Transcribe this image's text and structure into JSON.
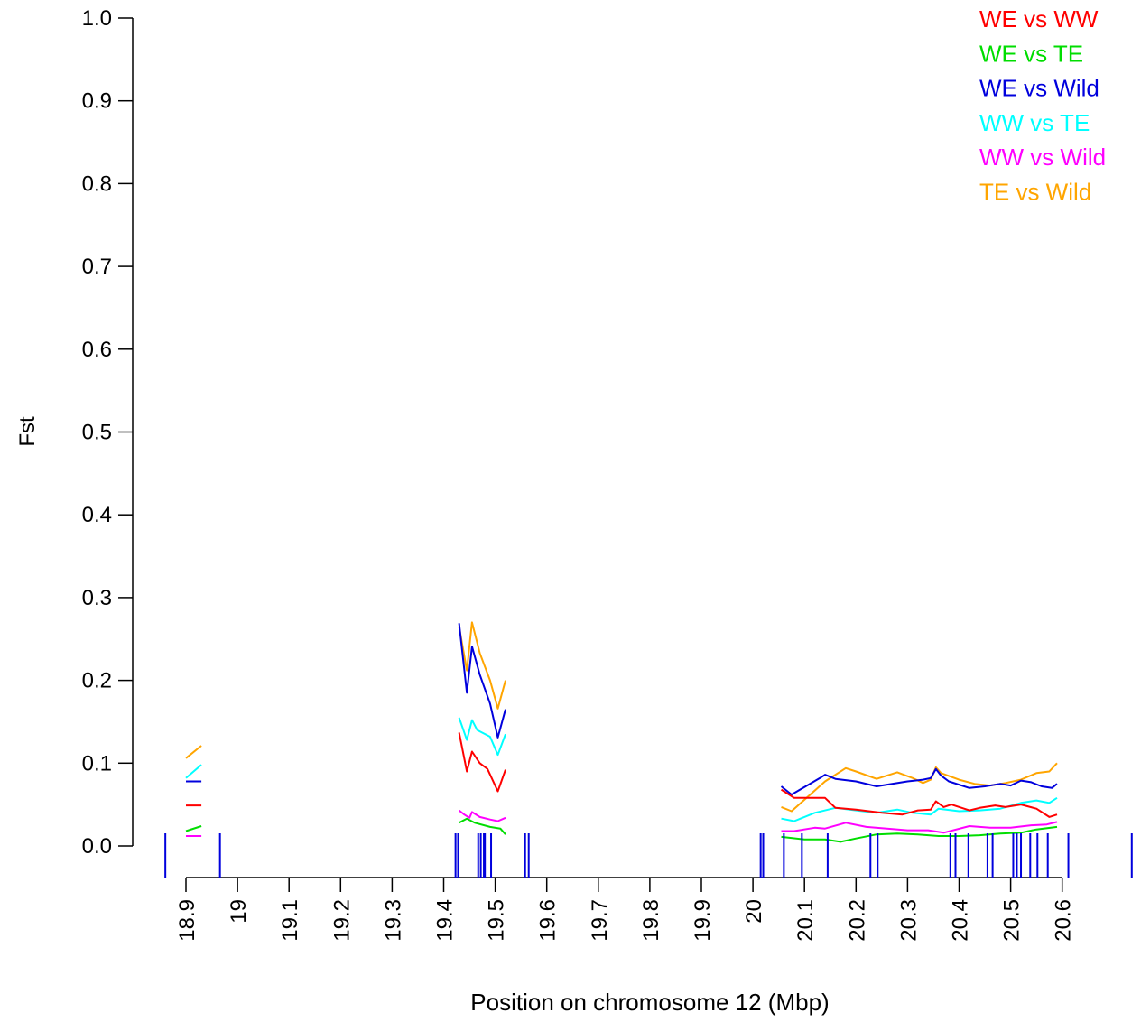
{
  "chart_data": {
    "type": "line",
    "title": "",
    "xlabel": "Position on chromosome 12 (Mbp)",
    "ylabel": "Fst",
    "xlim": [
      18.86,
      20.68
    ],
    "ylim": [
      0,
      1
    ],
    "grid": false,
    "legend_position": "top-right",
    "x_ticks": [
      {
        "value": 18.9,
        "label": "18.9"
      },
      {
        "value": 19.0,
        "label": "19"
      },
      {
        "value": 19.1,
        "label": "19.1"
      },
      {
        "value": 19.2,
        "label": "19.2"
      },
      {
        "value": 19.3,
        "label": "19.3"
      },
      {
        "value": 19.4,
        "label": "19.4"
      },
      {
        "value": 19.5,
        "label": "19.5"
      },
      {
        "value": 19.6,
        "label": "19.6"
      },
      {
        "value": 19.7,
        "label": "19.7"
      },
      {
        "value": 19.8,
        "label": "19.8"
      },
      {
        "value": 19.9,
        "label": "19.9"
      },
      {
        "value": 20.0,
        "label": "20"
      },
      {
        "value": 20.1,
        "label": "20.1"
      },
      {
        "value": 20.2,
        "label": "20.2"
      },
      {
        "value": 20.3,
        "label": "20.3"
      },
      {
        "value": 20.4,
        "label": "20.4"
      },
      {
        "value": 20.5,
        "label": "20.5"
      },
      {
        "value": 20.6,
        "label": "20.6"
      }
    ],
    "y_ticks": [
      {
        "value": 0.0,
        "label": "0.0"
      },
      {
        "value": 0.1,
        "label": "0.1"
      },
      {
        "value": 0.2,
        "label": "0.2"
      },
      {
        "value": 0.3,
        "label": "0.3"
      },
      {
        "value": 0.4,
        "label": "0.4"
      },
      {
        "value": 0.5,
        "label": "0.5"
      },
      {
        "value": 0.6,
        "label": "0.6"
      },
      {
        "value": 0.7,
        "label": "0.7"
      },
      {
        "value": 0.8,
        "label": "0.8"
      },
      {
        "value": 0.9,
        "label": "0.9"
      },
      {
        "value": 1.0,
        "label": "1.0"
      }
    ],
    "series": [
      {
        "name": "WE vs WW",
        "color": "#ff0000",
        "segments": [
          [
            [
              18.9,
              0.049
            ],
            [
              18.93,
              0.049
            ]
          ],
          [
            [
              19.43,
              0.137
            ],
            [
              19.445,
              0.09
            ],
            [
              19.455,
              0.114
            ],
            [
              19.47,
              0.1
            ],
            [
              19.485,
              0.093
            ],
            [
              19.505,
              0.066
            ],
            [
              19.52,
              0.092
            ]
          ],
          [
            [
              20.055,
              0.068
            ],
            [
              20.08,
              0.058
            ],
            [
              20.14,
              0.058
            ],
            [
              20.16,
              0.046
            ],
            [
              20.2,
              0.044
            ],
            [
              20.25,
              0.04
            ],
            [
              20.29,
              0.038
            ],
            [
              20.32,
              0.043
            ],
            [
              20.345,
              0.044
            ],
            [
              20.355,
              0.054
            ],
            [
              20.37,
              0.047
            ],
            [
              20.385,
              0.05
            ],
            [
              20.42,
              0.043
            ],
            [
              20.44,
              0.046
            ],
            [
              20.47,
              0.049
            ],
            [
              20.49,
              0.047
            ],
            [
              20.52,
              0.05
            ],
            [
              20.55,
              0.045
            ],
            [
              20.575,
              0.035
            ],
            [
              20.59,
              0.038
            ]
          ]
        ]
      },
      {
        "name": "WE vs TE",
        "color": "#00dd00",
        "segments": [
          [
            [
              18.9,
              0.018
            ],
            [
              18.93,
              0.024
            ]
          ],
          [
            [
              19.43,
              0.028
            ],
            [
              19.445,
              0.033
            ],
            [
              19.46,
              0.028
            ],
            [
              19.49,
              0.023
            ],
            [
              19.51,
              0.021
            ],
            [
              19.52,
              0.014
            ]
          ],
          [
            [
              20.055,
              0.011
            ],
            [
              20.1,
              0.008
            ],
            [
              20.14,
              0.008
            ],
            [
              20.17,
              0.005
            ],
            [
              20.2,
              0.009
            ],
            [
              20.24,
              0.014
            ],
            [
              20.28,
              0.015
            ],
            [
              20.32,
              0.014
            ],
            [
              20.36,
              0.012
            ],
            [
              20.4,
              0.012
            ],
            [
              20.44,
              0.013
            ],
            [
              20.48,
              0.015
            ],
            [
              20.52,
              0.016
            ],
            [
              20.55,
              0.02
            ],
            [
              20.59,
              0.023
            ]
          ]
        ]
      },
      {
        "name": "WE vs Wild",
        "color": "#0000dd",
        "segments": [
          [
            [
              18.9,
              0.078
            ],
            [
              18.93,
              0.078
            ]
          ],
          [
            [
              19.43,
              0.269
            ],
            [
              19.445,
              0.185
            ],
            [
              19.455,
              0.241
            ],
            [
              19.47,
              0.207
            ],
            [
              19.49,
              0.172
            ],
            [
              19.505,
              0.131
            ],
            [
              19.52,
              0.165
            ]
          ],
          [
            [
              20.055,
              0.072
            ],
            [
              20.075,
              0.062
            ],
            [
              20.13,
              0.082
            ],
            [
              20.14,
              0.086
            ],
            [
              20.16,
              0.081
            ],
            [
              20.2,
              0.078
            ],
            [
              20.24,
              0.072
            ],
            [
              20.3,
              0.078
            ],
            [
              20.33,
              0.08
            ],
            [
              20.345,
              0.082
            ],
            [
              20.355,
              0.093
            ],
            [
              20.365,
              0.085
            ],
            [
              20.38,
              0.078
            ],
            [
              20.42,
              0.07
            ],
            [
              20.45,
              0.072
            ],
            [
              20.48,
              0.075
            ],
            [
              20.5,
              0.073
            ],
            [
              20.52,
              0.079
            ],
            [
              20.54,
              0.077
            ],
            [
              20.56,
              0.072
            ],
            [
              20.58,
              0.07
            ],
            [
              20.59,
              0.075
            ]
          ]
        ]
      },
      {
        "name": "WW vs TE",
        "color": "#00ffff",
        "segments": [
          [
            [
              18.9,
              0.082
            ],
            [
              18.93,
              0.098
            ]
          ],
          [
            [
              19.43,
              0.155
            ],
            [
              19.445,
              0.128
            ],
            [
              19.455,
              0.152
            ],
            [
              19.465,
              0.14
            ],
            [
              19.49,
              0.132
            ],
            [
              19.505,
              0.11
            ],
            [
              19.52,
              0.135
            ]
          ],
          [
            [
              20.055,
              0.033
            ],
            [
              20.08,
              0.03
            ],
            [
              20.12,
              0.04
            ],
            [
              20.16,
              0.046
            ],
            [
              20.2,
              0.043
            ],
            [
              20.24,
              0.04
            ],
            [
              20.28,
              0.044
            ],
            [
              20.31,
              0.04
            ],
            [
              20.345,
              0.038
            ],
            [
              20.36,
              0.045
            ],
            [
              20.4,
              0.042
            ],
            [
              20.44,
              0.043
            ],
            [
              20.48,
              0.045
            ],
            [
              20.52,
              0.052
            ],
            [
              20.55,
              0.055
            ],
            [
              20.575,
              0.052
            ],
            [
              20.59,
              0.058
            ]
          ]
        ]
      },
      {
        "name": "WW vs Wild",
        "color": "#ff00ff",
        "segments": [
          [
            [
              18.9,
              0.012
            ],
            [
              18.93,
              0.012
            ]
          ],
          [
            [
              19.43,
              0.043
            ],
            [
              19.44,
              0.038
            ],
            [
              19.45,
              0.034
            ],
            [
              19.455,
              0.041
            ],
            [
              19.47,
              0.035
            ],
            [
              19.49,
              0.032
            ],
            [
              19.505,
              0.03
            ],
            [
              19.52,
              0.034
            ]
          ],
          [
            [
              20.055,
              0.018
            ],
            [
              20.08,
              0.018
            ],
            [
              20.12,
              0.022
            ],
            [
              20.14,
              0.021
            ],
            [
              20.18,
              0.028
            ],
            [
              20.22,
              0.023
            ],
            [
              20.26,
              0.021
            ],
            [
              20.3,
              0.019
            ],
            [
              20.34,
              0.019
            ],
            [
              20.37,
              0.016
            ],
            [
              20.42,
              0.024
            ],
            [
              20.46,
              0.022
            ],
            [
              20.5,
              0.022
            ],
            [
              20.54,
              0.025
            ],
            [
              20.57,
              0.026
            ],
            [
              20.59,
              0.029
            ]
          ]
        ]
      },
      {
        "name": "TE vs Wild",
        "color": "#ffa500",
        "segments": [
          [
            [
              18.9,
              0.106
            ],
            [
              18.93,
              0.121
            ]
          ],
          [
            [
              19.43,
              0.265
            ],
            [
              19.445,
              0.212
            ],
            [
              19.455,
              0.27
            ],
            [
              19.47,
              0.233
            ],
            [
              19.49,
              0.2
            ],
            [
              19.505,
              0.166
            ],
            [
              19.52,
              0.2
            ]
          ],
          [
            [
              20.055,
              0.047
            ],
            [
              20.075,
              0.042
            ],
            [
              20.14,
              0.078
            ],
            [
              20.18,
              0.094
            ],
            [
              20.2,
              0.09
            ],
            [
              20.24,
              0.081
            ],
            [
              20.28,
              0.089
            ],
            [
              20.31,
              0.082
            ],
            [
              20.33,
              0.076
            ],
            [
              20.345,
              0.08
            ],
            [
              20.355,
              0.095
            ],
            [
              20.365,
              0.088
            ],
            [
              20.4,
              0.08
            ],
            [
              20.43,
              0.075
            ],
            [
              20.46,
              0.073
            ],
            [
              20.49,
              0.076
            ],
            [
              20.52,
              0.08
            ],
            [
              20.55,
              0.088
            ],
            [
              20.575,
              0.09
            ],
            [
              20.59,
              0.1
            ]
          ]
        ]
      }
    ],
    "marker_color": "#0000dd",
    "marker_positions": [
      18.86,
      18.966,
      19.423,
      19.428,
      19.467,
      19.472,
      19.478,
      19.48,
      19.492,
      19.558,
      19.565,
      20.015,
      20.02,
      20.06,
      20.095,
      20.145,
      20.228,
      20.242,
      20.383,
      20.393,
      20.418,
      20.455,
      20.465,
      20.505,
      20.512,
      20.52,
      20.538,
      20.552,
      20.572,
      20.612,
      20.735
    ]
  }
}
